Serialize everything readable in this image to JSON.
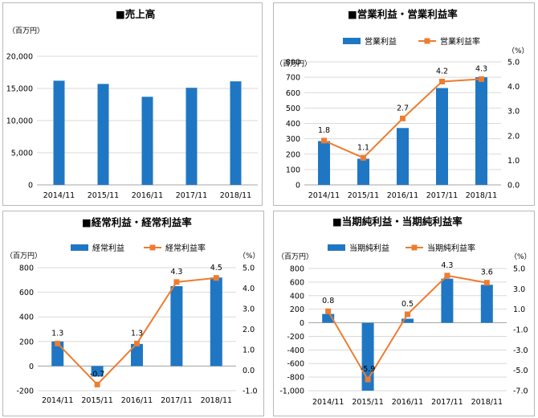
{
  "chart_data": [
    {
      "type": "bar",
      "title": "■売上高",
      "unit_left": "（百万円）",
      "categories": [
        "2014/11",
        "2015/11",
        "2016/11",
        "2017/11",
        "2018/11"
      ],
      "series": [
        {
          "name": "",
          "kind": "bar",
          "axis": "left",
          "values": [
            16200,
            15700,
            13700,
            15100,
            16100
          ],
          "color": "#1f77c4"
        }
      ],
      "ylim": [
        0,
        20000
      ],
      "yticks": [
        "0",
        "5,000",
        "10,000",
        "15,000",
        "20,000"
      ],
      "grid": true,
      "legend": "none"
    },
    {
      "type": "bar",
      "title": "■営業利益・営業利益率",
      "unit_left": "（百万円）",
      "unit_right": "（%）",
      "categories": [
        "2014/11",
        "2015/11",
        "2016/11",
        "2017/11",
        "2018/11"
      ],
      "series": [
        {
          "name": "営業利益",
          "kind": "bar",
          "axis": "left",
          "values": [
            285,
            170,
            370,
            630,
            700
          ],
          "color": "#1f77c4"
        },
        {
          "name": "営業利益率",
          "kind": "line",
          "axis": "right",
          "values": [
            1.8,
            1.1,
            2.7,
            4.2,
            4.3
          ],
          "labels": [
            "1.8",
            "1.1",
            "2.7",
            "4.2",
            "4.3"
          ],
          "color": "#ed7d31"
        }
      ],
      "ylim": [
        0,
        800
      ],
      "yticks": [
        "0",
        "100",
        "200",
        "300",
        "400",
        "500",
        "600",
        "700",
        "800"
      ],
      "y2lim": [
        0,
        5
      ],
      "y2ticks": [
        "0.0",
        "1.0",
        "2.0",
        "3.0",
        "4.0",
        "5.0"
      ],
      "grid": true,
      "legend": "top"
    },
    {
      "type": "bar",
      "title": "■経常利益・経常利益率",
      "unit_left": "（百万円）",
      "unit_right": "（%）",
      "categories": [
        "2014/11",
        "2015/11",
        "2016/11",
        "2017/11",
        "2018/11"
      ],
      "series": [
        {
          "name": "経常利益",
          "kind": "bar",
          "axis": "left",
          "values": [
            200,
            -85,
            180,
            650,
            720
          ],
          "color": "#1f77c4"
        },
        {
          "name": "経常利益率",
          "kind": "line",
          "axis": "right",
          "values": [
            1.3,
            -0.7,
            1.3,
            4.3,
            4.5
          ],
          "labels": [
            "1.3",
            "-0.7",
            "1.3",
            "4.3",
            "4.5"
          ],
          "color": "#ed7d31"
        }
      ],
      "ylim": [
        -200,
        800
      ],
      "yticks": [
        "-200",
        "0",
        "200",
        "400",
        "600",
        "800"
      ],
      "y2lim": [
        -1,
        5
      ],
      "y2ticks": [
        "-1.0",
        "0.0",
        "1.0",
        "2.0",
        "3.0",
        "4.0",
        "5.0"
      ],
      "grid": true,
      "legend": "top"
    },
    {
      "type": "bar",
      "title": "■当期純利益・当期純利益率",
      "unit_left": "（百万円）",
      "unit_right": "（%）",
      "categories": [
        "2014/11",
        "2015/11",
        "2016/11",
        "2017/11",
        "2018/11"
      ],
      "series": [
        {
          "name": "当期純利益",
          "kind": "bar",
          "axis": "left",
          "values": [
            130,
            -1000,
            60,
            650,
            560
          ],
          "color": "#1f77c4"
        },
        {
          "name": "当期純利益率",
          "kind": "line",
          "axis": "right",
          "values": [
            0.8,
            -5.9,
            0.5,
            4.3,
            3.6
          ],
          "labels": [
            "0.8",
            "-5.9",
            "0.5",
            "4.3",
            "3.6"
          ],
          "color": "#ed7d31"
        }
      ],
      "ylim": [
        -1000,
        800
      ],
      "yticks": [
        "-1,000",
        "-800",
        "-600",
        "-400",
        "-200",
        "0",
        "200",
        "400",
        "600",
        "800"
      ],
      "y2lim": [
        -7,
        5
      ],
      "y2ticks": [
        "-7.0",
        "-5.0",
        "-3.0",
        "-1.0",
        "1.0",
        "3.0",
        "5.0"
      ],
      "grid": true,
      "legend": "top"
    }
  ]
}
